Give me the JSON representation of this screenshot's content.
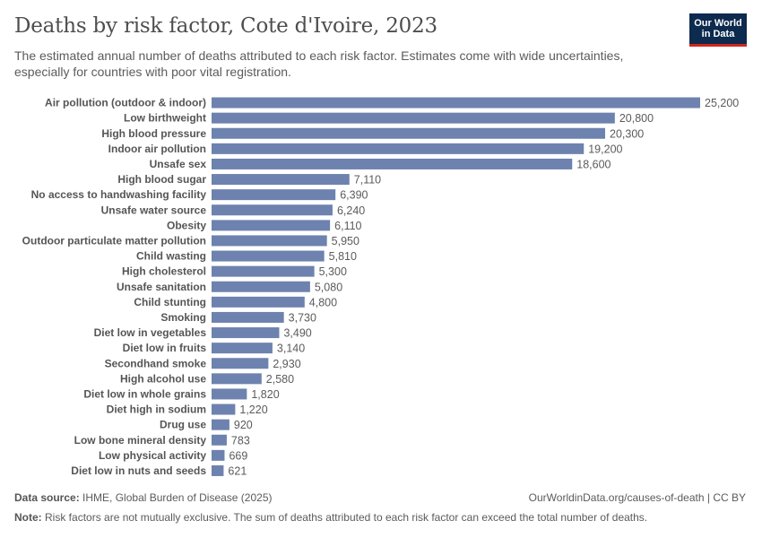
{
  "header": {
    "title": "Deaths by risk factor, Cote d'Ivoire, 2023",
    "subtitle": "The estimated annual number of deaths attributed to each risk factor. Estimates come with wide uncertainties, especially for countries with poor vital registration."
  },
  "logo": {
    "line1": "Our World",
    "line2": "in Data",
    "bg_color": "#0d2a4f",
    "accent_color": "#ce261e"
  },
  "footer": {
    "source_label": "Data source:",
    "source_text": "IHME, Global Burden of Disease (2025)",
    "url_text": "OurWorldinData.org/causes-of-death | CC BY",
    "note_label": "Note:",
    "note_text": "Risk factors are not mutually exclusive. The sum of deaths attributed to each risk factor can exceed the total number of deaths."
  },
  "chart_data": {
    "type": "bar",
    "orientation": "horizontal",
    "title": "Deaths by risk factor, Cote d'Ivoire, 2023",
    "bar_color": "#6d82ae",
    "categories": [
      "Air pollution (outdoor & indoor)",
      "Low birthweight",
      "High blood pressure",
      "Indoor air pollution",
      "Unsafe sex",
      "High blood sugar",
      "No access to handwashing facility",
      "Unsafe water source",
      "Obesity",
      "Outdoor particulate matter pollution",
      "Child wasting",
      "High cholesterol",
      "Unsafe sanitation",
      "Child stunting",
      "Smoking",
      "Diet low in vegetables",
      "Diet low in fruits",
      "Secondhand smoke",
      "High alcohol use",
      "Diet low in whole grains",
      "Diet high in sodium",
      "Drug use",
      "Low bone mineral density",
      "Low physical activity",
      "Diet low in nuts and seeds"
    ],
    "values": [
      25200,
      20800,
      20300,
      19200,
      18600,
      7110,
      6390,
      6240,
      6110,
      5950,
      5810,
      5300,
      5080,
      4800,
      3730,
      3490,
      3140,
      2930,
      2580,
      1820,
      1220,
      920,
      783,
      669,
      621
    ],
    "value_labels": [
      "25,200",
      "20,800",
      "20,300",
      "19,200",
      "18,600",
      "7,110",
      "6,390",
      "6,240",
      "6,110",
      "5,950",
      "5,810",
      "5,300",
      "5,080",
      "4,800",
      "3,730",
      "3,490",
      "3,140",
      "2,930",
      "2,580",
      "1,820",
      "1,220",
      "920",
      "783",
      "669",
      "621"
    ],
    "xlim": [
      0,
      25200
    ]
  }
}
